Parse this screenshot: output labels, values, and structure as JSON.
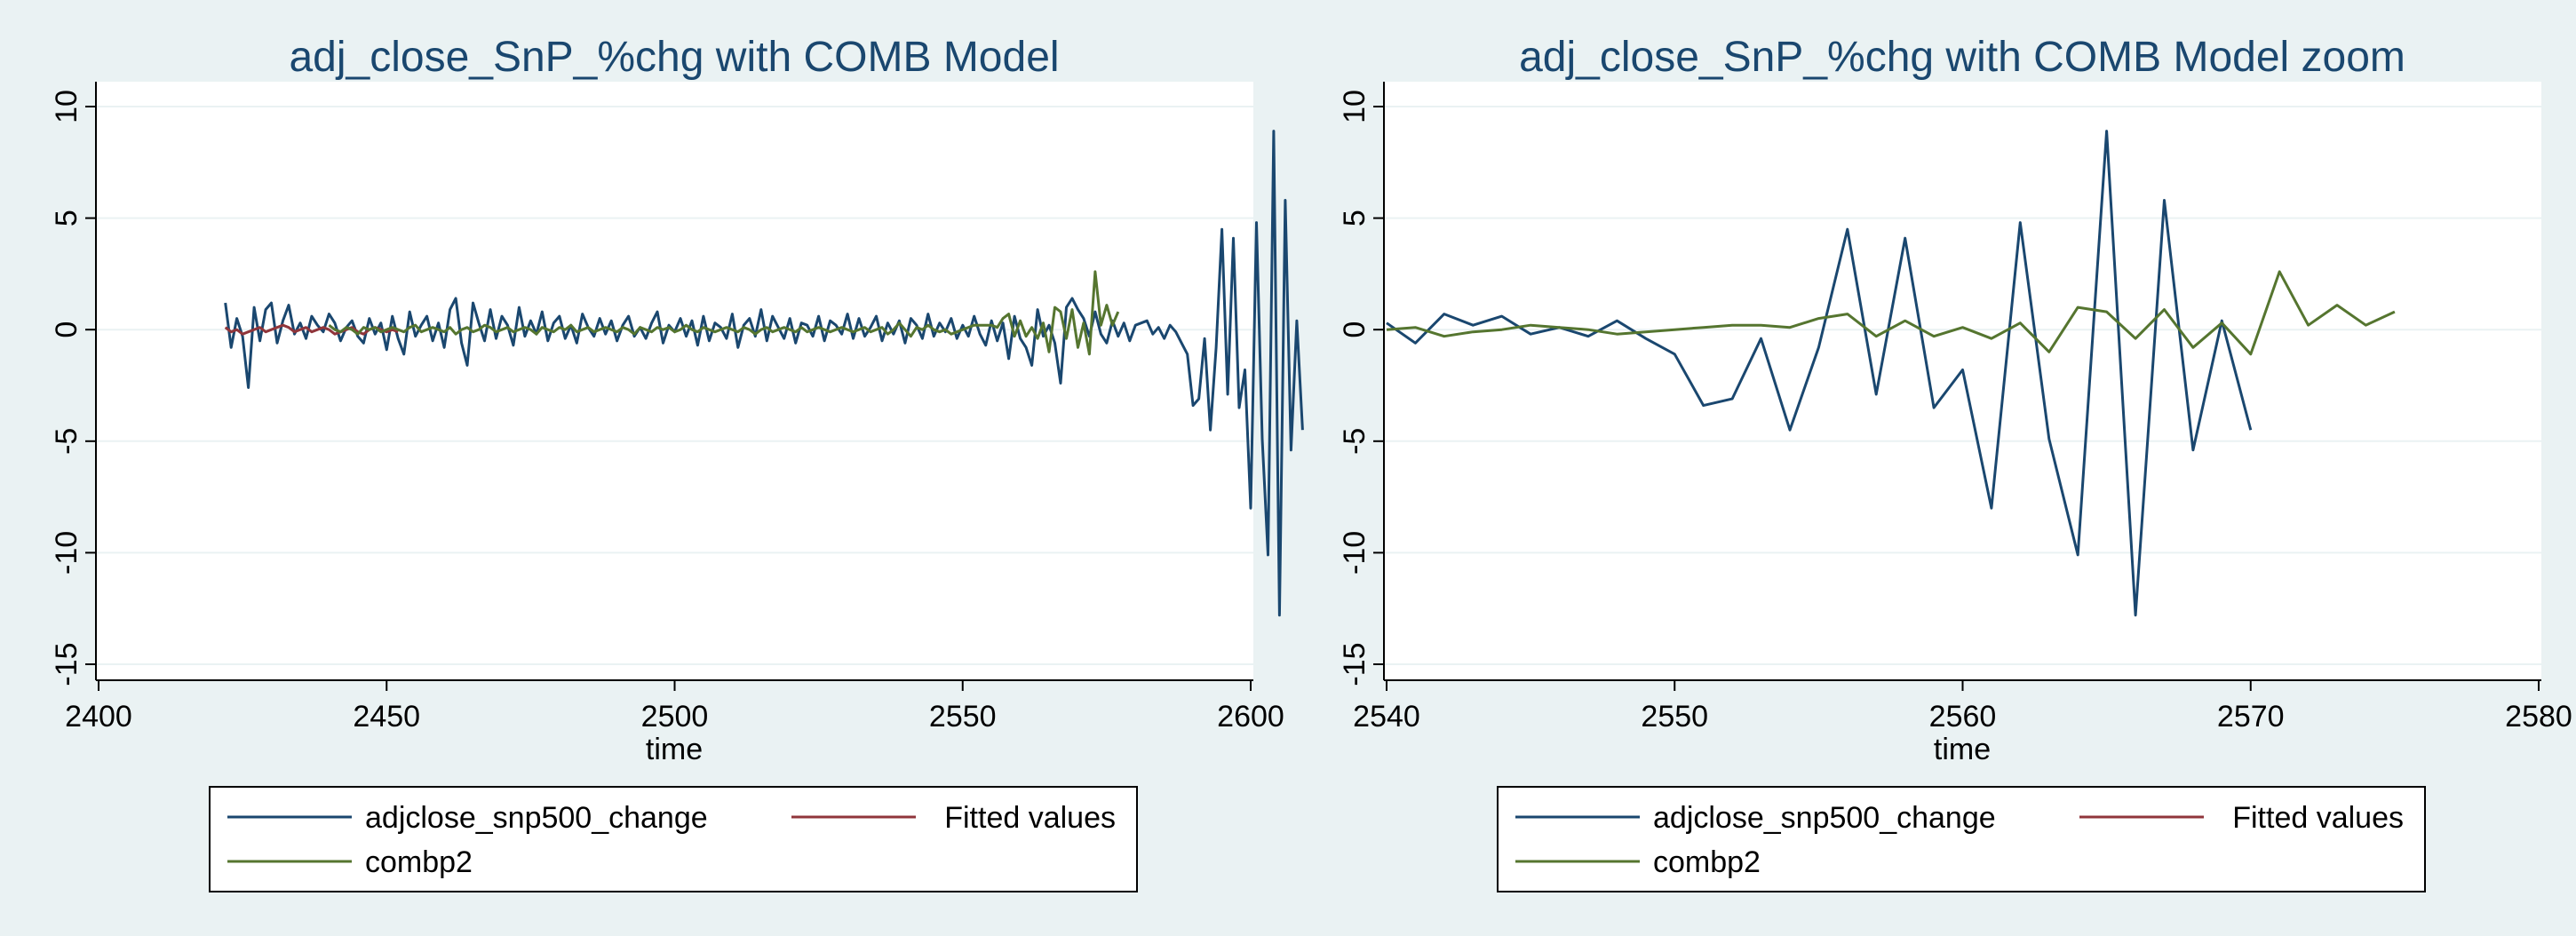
{
  "colors": {
    "background": "#eaf2f3",
    "plot_region": "#ffffff",
    "grid": "#eaf2f3",
    "title": "#1a476f",
    "series_adjclose": "#1a476f",
    "series_fitted": "#90353b",
    "series_combp2": "#55752f"
  },
  "chart_data": [
    {
      "type": "line",
      "title": "adj_close_SnP_%chg with COMB Model",
      "xlabel": "time",
      "ylabel": "",
      "xlim": [
        2400,
        2600
      ],
      "ylim": [
        -15,
        10
      ],
      "xticks": [
        2400,
        2450,
        2500,
        2550,
        2600
      ],
      "yticks": [
        -15,
        -10,
        -5,
        0,
        5,
        10
      ],
      "grid": true,
      "legend": {
        "position": "bottom",
        "entries": [
          "adjclose_snp500_change",
          "Fitted values",
          "combp2"
        ]
      },
      "series": [
        {
          "name": "adjclose_snp500_change",
          "x_start": 2422,
          "values": [
            1.2,
            -0.8,
            0.5,
            -0.3,
            -2.6,
            1.0,
            -0.5,
            0.9,
            1.2,
            -0.6,
            0.4,
            1.1,
            -0.2,
            0.3,
            -0.4,
            0.6,
            0.2,
            -0.1,
            0.7,
            0.3,
            -0.5,
            0.1,
            0.4,
            -0.3,
            -0.6,
            0.5,
            -0.2,
            0.3,
            -0.9,
            0.6,
            -0.4,
            -1.1,
            0.8,
            -0.3,
            0.2,
            0.6,
            -0.5,
            0.3,
            -0.8,
            0.9,
            1.4,
            -0.6,
            -1.6,
            1.2,
            0.3,
            -0.5,
            0.9,
            -0.4,
            0.6,
            0.2,
            -0.7,
            1.0,
            -0.3,
            0.4,
            -0.2,
            0.8,
            -0.5,
            0.3,
            0.6,
            -0.4,
            0.2,
            -0.6,
            0.7,
            0.1,
            -0.3,
            0.5,
            -0.2,
            0.4,
            -0.5,
            0.2,
            0.6,
            -0.3,
            0.1,
            -0.4,
            0.3,
            0.8,
            -0.6,
            0.2,
            -0.1,
            0.5,
            -0.3,
            0.4,
            -0.7,
            0.6,
            -0.5,
            0.3,
            0.1,
            -0.4,
            0.7,
            -0.8,
            0.2,
            0.5,
            -0.3,
            0.9,
            -0.5,
            0.6,
            0.1,
            -0.4,
            0.5,
            -0.6,
            0.3,
            0.2,
            -0.3,
            0.6,
            -0.5,
            0.4,
            0.2,
            -0.2,
            0.7,
            -0.4,
            0.5,
            -0.3,
            0.1,
            0.6,
            -0.5,
            0.3,
            -0.2,
            0.4,
            -0.6,
            0.5,
            0.2,
            -0.4,
            0.7,
            -0.3,
            0.3,
            -0.1,
            0.5,
            -0.4,
            0.2,
            -0.3,
            0.6,
            -0.2,
            -0.7,
            0.4,
            -0.5,
            0.3,
            -1.3,
            0.6,
            -0.4,
            -0.8,
            -1.6,
            0.9,
            -0.3,
            0.2,
            -0.6,
            -2.4,
            1.0,
            1.4,
            0.9,
            0.5,
            -0.3,
            0.8,
            -0.2,
            -0.6,
            0.4,
            -0.3,
            0.3,
            -0.5,
            0.2,
            0.3,
            0.4,
            -0.2,
            0.1,
            -0.4,
            0.2,
            -0.1,
            -0.6,
            -1.1,
            -3.4,
            -3.1,
            -0.4,
            -4.5,
            -0.8,
            4.5,
            -2.9,
            4.1,
            -3.5,
            -1.8,
            -8.0,
            4.8,
            -4.9,
            -10.1,
            8.9,
            -12.8,
            5.8,
            -5.4,
            0.4,
            -4.5
          ]
        },
        {
          "name": "Fitted values",
          "x_start": 2422,
          "values": [
            0.1,
            -0.1,
            0.0,
            -0.2,
            -0.1,
            0.0,
            0.1,
            -0.1,
            0.0,
            0.1,
            0.2,
            0.1,
            -0.1,
            0.0,
            0.1,
            -0.1,
            0.0,
            0.1,
            0.0,
            -0.2,
            -0.1,
            0.0,
            0.1,
            -0.1,
            -0.2,
            0.0,
            0.1,
            0.0,
            -0.1,
            0.0,
            -0.1
          ]
        },
        {
          "name": "combp2",
          "x_start": 2440,
          "values": [
            0.2,
            0.0,
            -0.1,
            0.1,
            0.0,
            -0.2,
            0.1,
            0.0,
            0.1,
            -0.1,
            0.0,
            0.1,
            0.0,
            -0.1,
            0.1,
            0.2,
            -0.1,
            0.0,
            0.1,
            0.0,
            -0.1,
            0.1,
            -0.2,
            0.0,
            0.1,
            -0.1,
            0.0,
            0.2,
            0.1,
            -0.1,
            0.0,
            0.1,
            -0.1,
            0.0,
            0.1,
            0.0,
            -0.2,
            0.1,
            0.0,
            -0.1,
            0.1,
            0.0,
            0.2,
            -0.1,
            0.0,
            0.1,
            -0.1,
            0.0,
            0.1,
            0.0,
            -0.1,
            0.1,
            0.0,
            -0.2,
            0.1,
            0.0,
            -0.1,
            0.1,
            0.0,
            0.1,
            -0.1,
            0.0,
            0.2,
            0.0,
            -0.1,
            0.1,
            0.0,
            -0.1,
            0.0,
            0.1,
            0.0,
            -0.1,
            0.1,
            0.0,
            -0.2,
            0.0,
            0.1,
            -0.1,
            0.0,
            0.1,
            0.0,
            -0.1,
            0.1,
            -0.1,
            0.0,
            0.1,
            0.0,
            -0.1,
            0.0,
            0.1,
            0.0,
            -0.1,
            0.0,
            0.1,
            -0.1,
            0.0,
            0.1,
            -0.2,
            0.0,
            0.3,
            0.0,
            -0.3,
            0.1,
            0.0,
            0.2,
            0.0,
            -0.1,
            0.0,
            -0.2,
            -0.1,
            0.0,
            0.1,
            0.2,
            0.2,
            0.2,
            0.2,
            0.1,
            0.5,
            0.7,
            -0.3,
            0.4,
            -0.3,
            0.1,
            -0.4,
            0.3,
            -1.0,
            1.0,
            0.8,
            -0.4,
            0.9,
            -0.8,
            0.3,
            -1.1,
            2.6,
            0.2,
            1.1,
            0.2,
            0.8
          ]
        }
      ]
    },
    {
      "type": "line",
      "title": "adj_close_SnP_%chg with COMB Model zoom",
      "xlabel": "time",
      "ylabel": "",
      "xlim": [
        2540,
        2580
      ],
      "ylim": [
        -15,
        10
      ],
      "xticks": [
        2540,
        2550,
        2560,
        2570,
        2580
      ],
      "yticks": [
        -15,
        -10,
        -5,
        0,
        5,
        10
      ],
      "grid": true,
      "legend": {
        "position": "bottom",
        "entries": [
          "adjclose_snp500_change",
          "Fitted values",
          "combp2"
        ]
      },
      "series": [
        {
          "name": "adjclose_snp500_change",
          "x_start": 2540,
          "values": [
            0.3,
            -0.6,
            0.7,
            0.2,
            0.6,
            -0.2,
            0.1,
            -0.3,
            0.4,
            -0.4,
            -1.1,
            -3.4,
            -3.1,
            -0.4,
            -4.5,
            -0.8,
            4.5,
            -2.9,
            4.1,
            -3.5,
            -1.8,
            -8.0,
            4.8,
            -4.9,
            -10.1,
            8.9,
            -12.8,
            5.8,
            -5.4,
            0.4,
            -4.5
          ]
        },
        {
          "name": "Fitted values",
          "x_start": 2540,
          "values": []
        },
        {
          "name": "combp2",
          "x_start": 2540,
          "values": [
            0.0,
            0.1,
            -0.3,
            -0.1,
            0.0,
            0.2,
            0.1,
            0.0,
            -0.2,
            -0.1,
            0.0,
            0.1,
            0.2,
            0.2,
            0.1,
            0.5,
            0.7,
            -0.3,
            0.4,
            -0.3,
            0.1,
            -0.4,
            0.3,
            -1.0,
            1.0,
            0.8,
            -0.4,
            0.9,
            -0.8,
            0.3,
            -1.1,
            2.6,
            0.2,
            1.1,
            0.2,
            0.8
          ]
        }
      ]
    }
  ]
}
